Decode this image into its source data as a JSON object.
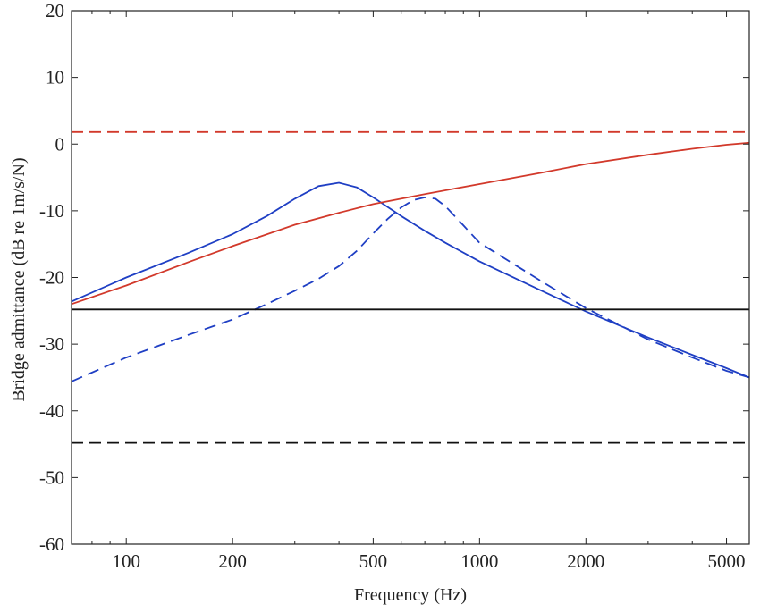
{
  "chart_data": {
    "type": "line",
    "title": "",
    "xlabel": "Frequency (Hz)",
    "ylabel": "Bridge admittance (dB re 1m/s/N)",
    "x_scale": "log",
    "xlim": [
      70,
      5800
    ],
    "ylim": [
      -60,
      20
    ],
    "x_ticks": [
      100,
      200,
      500,
      1000,
      2000,
      5000
    ],
    "x_tick_labels": [
      "100",
      "200",
      "500",
      "1000",
      "2000",
      "5000"
    ],
    "y_ticks": [
      20,
      10,
      0,
      -10,
      -20,
      -30,
      -40,
      -50,
      -60
    ],
    "y_tick_labels": [
      "20",
      "10",
      "0",
      "-10",
      "-20",
      "-30",
      "-40",
      "-50",
      "-60"
    ],
    "grid": false,
    "legend": "none",
    "colors": {
      "blue": "#1f3fc4",
      "red": "#d2392b",
      "black": "#111111"
    },
    "series": [
      {
        "color": "#1f3fc4",
        "dash": "solid",
        "x": [
          70,
          100,
          150,
          200,
          250,
          300,
          350,
          400,
          450,
          500,
          600,
          700,
          800,
          1000,
          1500,
          2000,
          3000,
          4000,
          5000,
          5800
        ],
        "y": [
          -23.6,
          -20.0,
          -16.3,
          -13.5,
          -10.8,
          -8.2,
          -6.3,
          -5.8,
          -6.5,
          -8.0,
          -10.8,
          -13.0,
          -14.8,
          -17.6,
          -22.0,
          -25.1,
          -29.0,
          -31.6,
          -33.6,
          -35.0
        ]
      },
      {
        "color": "#1f3fc4",
        "dash": "dashed",
        "x": [
          70,
          100,
          150,
          200,
          250,
          300,
          350,
          400,
          450,
          500,
          550,
          600,
          650,
          700,
          750,
          800,
          900,
          1000,
          1500,
          2000,
          3000,
          4000,
          5000,
          5800
        ],
        "y": [
          -35.6,
          -32.0,
          -28.6,
          -26.3,
          -24.0,
          -22.0,
          -20.2,
          -18.3,
          -16.0,
          -13.4,
          -11.2,
          -9.5,
          -8.4,
          -8.0,
          -8.2,
          -9.3,
          -12.2,
          -14.8,
          -20.6,
          -24.6,
          -29.3,
          -32.0,
          -34.0,
          -35.0
        ]
      },
      {
        "color": "#d2392b",
        "dash": "solid",
        "x": [
          70,
          100,
          150,
          200,
          300,
          400,
          500,
          700,
          1000,
          1500,
          2000,
          3000,
          4000,
          5000,
          5800
        ],
        "y": [
          -24.0,
          -21.2,
          -17.7,
          -15.3,
          -12.1,
          -10.3,
          -9.0,
          -7.5,
          -6.0,
          -4.3,
          -3.0,
          -1.6,
          -0.7,
          -0.1,
          0.2
        ]
      },
      {
        "color": "#d2392b",
        "dash": "dashed",
        "x": [
          70,
          5800
        ],
        "y": [
          1.8,
          1.8
        ]
      },
      {
        "color": "#111111",
        "dash": "solid",
        "x": [
          70,
          5800
        ],
        "y": [
          -24.8,
          -24.8
        ]
      },
      {
        "color": "#111111",
        "dash": "dashed",
        "x": [
          70,
          5800
        ],
        "y": [
          -44.8,
          -44.8
        ]
      }
    ]
  }
}
